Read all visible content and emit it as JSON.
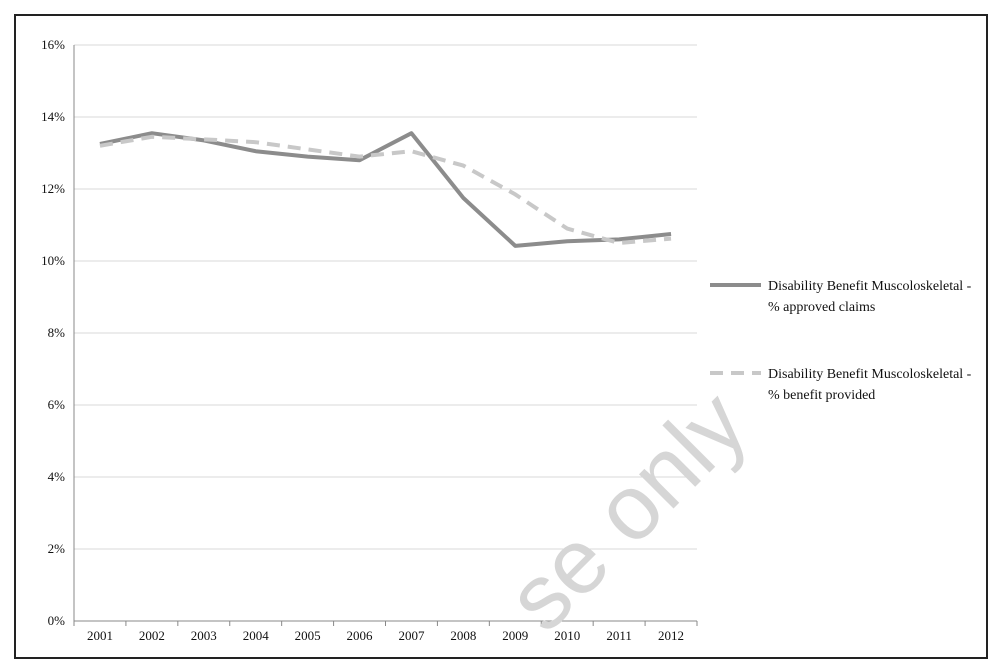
{
  "chart_data": {
    "type": "line",
    "title": "",
    "xlabel": "",
    "ylabel": "",
    "x": [
      "2001",
      "2002",
      "2003",
      "2004",
      "2005",
      "2006",
      "2007",
      "2008",
      "2009",
      "2010",
      "2011",
      "2012"
    ],
    "ylim": [
      0,
      16
    ],
    "yticks": [
      0,
      2,
      4,
      6,
      8,
      10,
      12,
      14,
      16
    ],
    "ytick_labels": [
      "0%",
      "2%",
      "4%",
      "6%",
      "8%",
      "10%",
      "12%",
      "14%",
      "16%"
    ],
    "grid": "horizontal",
    "legend_position": "right",
    "series": [
      {
        "name_lines": [
          "Disability Benefit Muscoloskeletal -",
          "% approved claims"
        ],
        "values": [
          13.25,
          13.55,
          13.35,
          13.05,
          12.9,
          12.8,
          13.55,
          11.75,
          10.42,
          10.55,
          10.6,
          10.75
        ],
        "color": "#8c8c8c",
        "style": "solid"
      },
      {
        "name_lines": [
          "Disability Benefit Muscoloskeletal -",
          "% benefit provided"
        ],
        "values": [
          13.2,
          13.45,
          13.38,
          13.3,
          13.1,
          12.9,
          13.05,
          12.65,
          11.85,
          10.9,
          10.5,
          10.62
        ],
        "color": "#c8c8c8",
        "style": "dashed"
      }
    ]
  },
  "watermark": "se only"
}
